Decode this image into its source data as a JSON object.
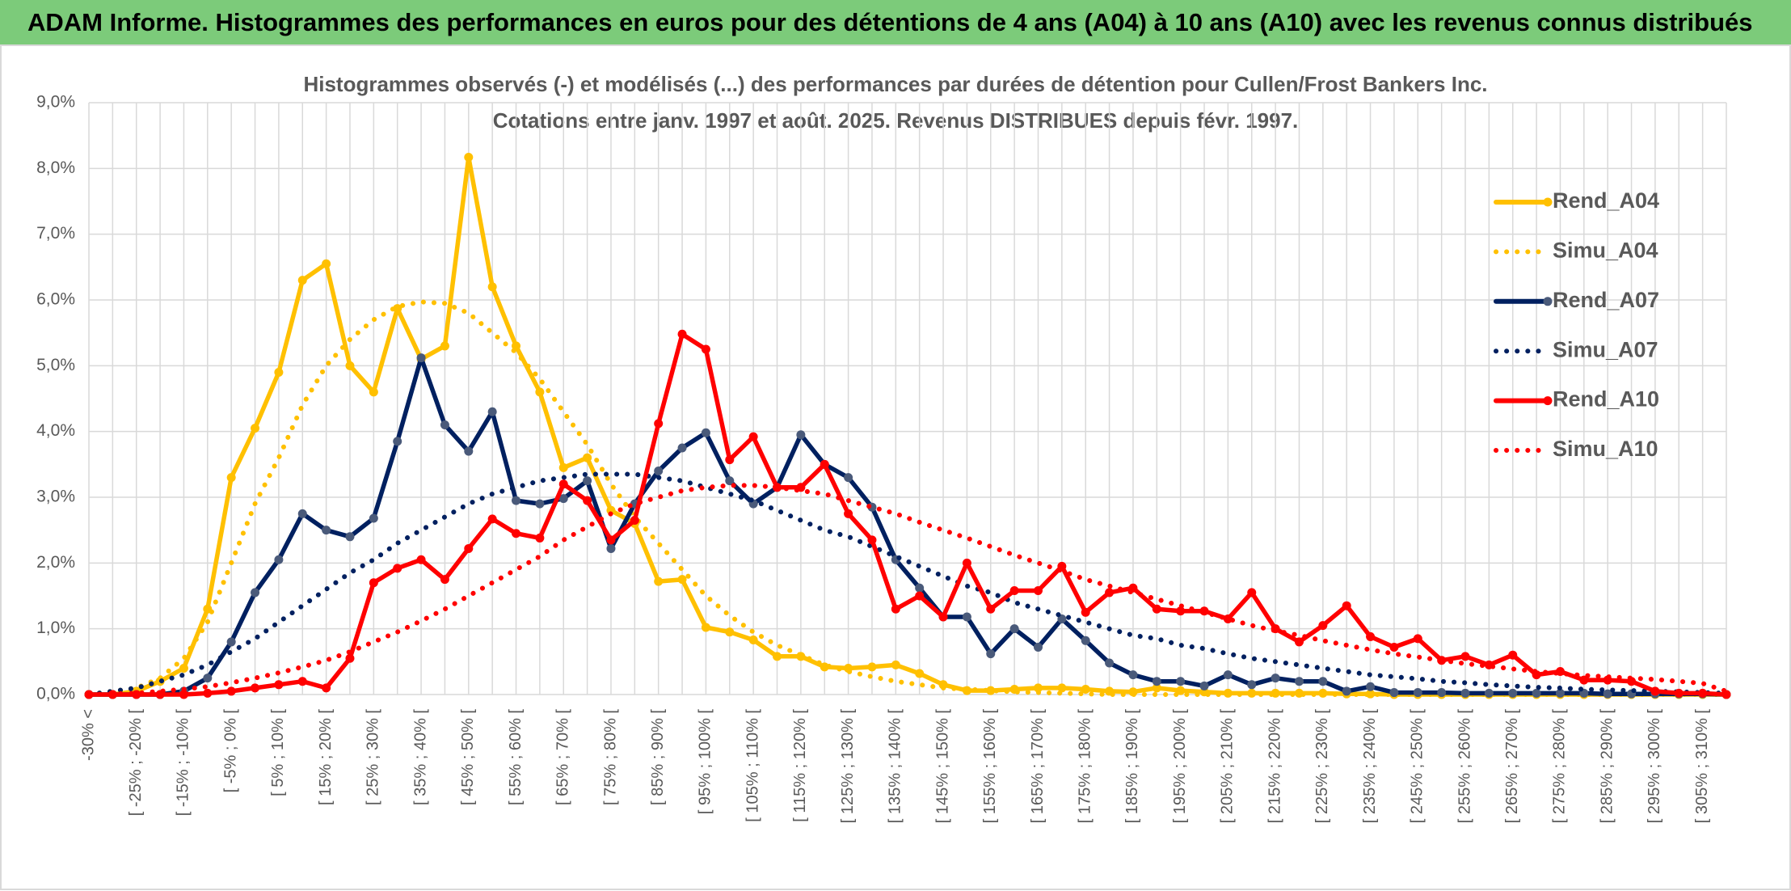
{
  "chart_data": {
    "type": "line",
    "title": "ADAM Informe. Histogrammes des performances en euros pour des détentions de 4 ans (A04) à 10 ans (A10) avec les revenus connus distribués",
    "subtitle": [
      "Histogrammes observés (-) et modélisés (...) des performances par durées de détention pour Cullen/Frost Bankers Inc.",
      "Cotations entre janv. 1997 et août. 2025. Revenus DISTRIBUES depuis févr. 1997."
    ],
    "categories": [
      "-30% <",
      null,
      "[ -25% ; -20% [",
      null,
      "[ -15% ; -10% [",
      null,
      "[ -5% ; 0% [",
      null,
      "[ 5% ; 10% [",
      null,
      "[ 15% ; 20% [",
      null,
      "[ 25% ; 30% [",
      null,
      "[ 35% ; 40% [",
      null,
      "[ 45% ; 50% [",
      null,
      "[ 55% ; 60% [",
      null,
      "[ 65% ; 70% [",
      null,
      "[ 75% ; 80% [",
      null,
      "[ 85% ; 90% [",
      null,
      "[ 95% ; 100% [",
      null,
      "[ 105% ; 110% [",
      null,
      "[ 115% ; 120% [",
      null,
      "[ 125% ; 130% [",
      null,
      "[ 135% ; 140% [",
      null,
      "[ 145% ; 150% [",
      null,
      "[ 155% ; 160% [",
      null,
      "[ 165% ; 170% [",
      null,
      "[ 175% ; 180% [",
      null,
      "[ 185% ; 190% [",
      null,
      "[ 195% ; 200% [",
      null,
      "[ 205% ; 210% [",
      null,
      "[ 215% ; 220% [",
      null,
      "[ 225% ; 230% [",
      null,
      "[ 235% ; 240% [",
      null,
      "[ 245% ; 250% [",
      null,
      "[ 255% ; 260% [",
      null,
      "[ 265% ; 270% [",
      null,
      "[ 275% ; 280% [",
      null,
      "[ 285% ; 290% [",
      null,
      "[ 295% ; 300% [",
      null,
      "[ 305% ; 310% [",
      null
    ],
    "ylim": [
      0,
      9
    ],
    "yticks": [
      {
        "value": 0,
        "label": "0,0%"
      },
      {
        "value": 1,
        "label": "1,0%"
      },
      {
        "value": 2,
        "label": "2,0%"
      },
      {
        "value": 3,
        "label": "3,0%"
      },
      {
        "value": 4,
        "label": "4,0%"
      },
      {
        "value": 5,
        "label": "5,0%"
      },
      {
        "value": 6,
        "label": "6,0%"
      },
      {
        "value": 7,
        "label": "7,0%"
      },
      {
        "value": 8,
        "label": "8,0%"
      },
      {
        "value": 9,
        "label": "9,0%"
      }
    ],
    "grid": true,
    "legend": "right",
    "series": [
      {
        "name": "Rend_A04",
        "color": "#FFC000",
        "style": "solid",
        "values": [
          0,
          0,
          0.05,
          0.2,
          0.4,
          1.3,
          3.3,
          4.05,
          4.9,
          6.3,
          6.55,
          5.0,
          4.6,
          5.87,
          5.1,
          5.3,
          8.17,
          6.2,
          5.3,
          4.6,
          3.45,
          3.6,
          2.8,
          2.6,
          1.72,
          1.75,
          1.02,
          0.95,
          0.83,
          0.58,
          0.58,
          0.42,
          0.4,
          0.42,
          0.45,
          0.32,
          0.15,
          0.06,
          0.06,
          0.08,
          0.1,
          0.1,
          0.08,
          0.05,
          0.04,
          0.1,
          0.06,
          0.04,
          0.02,
          0.02,
          0.02,
          0.02,
          0.02,
          0.01,
          0.01,
          0,
          0,
          0,
          0,
          0,
          0,
          0,
          0,
          0,
          0,
          0,
          0,
          0,
          0,
          0
        ]
      },
      {
        "name": "Simu_A04",
        "color": "#FFC000",
        "style": "dotted",
        "values": [
          0,
          0.05,
          0.1,
          0.25,
          0.55,
          1.1,
          2.0,
          2.9,
          3.6,
          4.4,
          5.0,
          5.4,
          5.7,
          5.9,
          5.97,
          5.95,
          5.8,
          5.5,
          5.2,
          4.8,
          4.3,
          3.8,
          3.2,
          2.7,
          2.3,
          1.9,
          1.5,
          1.2,
          0.95,
          0.75,
          0.6,
          0.45,
          0.35,
          0.27,
          0.2,
          0.15,
          0.1,
          0.08,
          0.06,
          0.04,
          0.03,
          0.02,
          0.01,
          0,
          0,
          0,
          0,
          0,
          0,
          0,
          0,
          0,
          0,
          0,
          0,
          0,
          0,
          0,
          0,
          0,
          0,
          0,
          0,
          0,
          0,
          0,
          0,
          0,
          0,
          0
        ]
      },
      {
        "name": "Rend_A07",
        "color": "#002060",
        "style": "solid",
        "marker": "#4a5a7a",
        "values": [
          0,
          0,
          0,
          0,
          0.05,
          0.25,
          0.8,
          1.55,
          2.05,
          2.75,
          2.5,
          2.4,
          2.68,
          3.85,
          5.12,
          4.1,
          3.7,
          4.3,
          2.95,
          2.9,
          2.98,
          3.25,
          2.22,
          2.9,
          3.4,
          3.75,
          3.98,
          3.25,
          2.9,
          3.15,
          3.95,
          3.5,
          3.3,
          2.85,
          2.05,
          1.62,
          1.18,
          1.18,
          0.62,
          1.0,
          0.72,
          1.15,
          0.82,
          0.48,
          0.3,
          0.2,
          0.2,
          0.13,
          0.3,
          0.15,
          0.25,
          0.2,
          0.2,
          0.05,
          0.12,
          0.03,
          0.03,
          0.03,
          0.02,
          0.02,
          0.02,
          0.02,
          0.02,
          0.02,
          0.01,
          0.01,
          0.01,
          0.01,
          0.01,
          0
        ]
      },
      {
        "name": "Simu_A07",
        "color": "#002060",
        "style": "dotted",
        "values": [
          0,
          0.05,
          0.1,
          0.2,
          0.3,
          0.45,
          0.65,
          0.85,
          1.1,
          1.35,
          1.6,
          1.85,
          2.05,
          2.3,
          2.5,
          2.7,
          2.9,
          3.05,
          3.15,
          3.25,
          3.3,
          3.35,
          3.35,
          3.35,
          3.3,
          3.25,
          3.15,
          3.05,
          2.95,
          2.8,
          2.65,
          2.5,
          2.4,
          2.25,
          2.1,
          1.95,
          1.8,
          1.65,
          1.55,
          1.4,
          1.3,
          1.2,
          1.1,
          1.0,
          0.9,
          0.85,
          0.75,
          0.7,
          0.62,
          0.55,
          0.5,
          0.45,
          0.4,
          0.35,
          0.3,
          0.27,
          0.24,
          0.2,
          0.18,
          0.15,
          0.13,
          0.11,
          0.1,
          0.08,
          0.07,
          0.06,
          0.05,
          0.04,
          0.03,
          0.02
        ]
      },
      {
        "name": "Rend_A10",
        "color": "#FF0000",
        "style": "solid",
        "values": [
          0,
          0,
          0,
          0,
          0,
          0.02,
          0.05,
          0.1,
          0.15,
          0.2,
          0.1,
          0.55,
          1.7,
          1.92,
          2.05,
          1.75,
          2.22,
          2.67,
          2.45,
          2.38,
          3.2,
          2.95,
          2.35,
          2.65,
          4.12,
          5.48,
          5.25,
          3.57,
          3.92,
          3.15,
          3.15,
          3.5,
          2.75,
          2.35,
          1.3,
          1.5,
          1.18,
          2.0,
          1.3,
          1.58,
          1.58,
          1.95,
          1.25,
          1.55,
          1.62,
          1.3,
          1.27,
          1.27,
          1.15,
          1.55,
          1.0,
          0.8,
          1.05,
          1.35,
          0.88,
          0.72,
          0.85,
          0.52,
          0.58,
          0.45,
          0.6,
          0.3,
          0.35,
          0.22,
          0.22,
          0.2,
          0.05,
          0.02,
          0.02,
          0
        ]
      },
      {
        "name": "Simu_A10",
        "color": "#FF0000",
        "style": "dotted",
        "values": [
          0,
          0.01,
          0.02,
          0.05,
          0.08,
          0.12,
          0.18,
          0.25,
          0.33,
          0.42,
          0.52,
          0.65,
          0.8,
          0.95,
          1.12,
          1.3,
          1.5,
          1.7,
          1.9,
          2.1,
          2.35,
          2.55,
          2.75,
          2.9,
          3.0,
          3.1,
          3.15,
          3.18,
          3.18,
          3.15,
          3.1,
          3.05,
          2.95,
          2.85,
          2.75,
          2.62,
          2.5,
          2.38,
          2.25,
          2.12,
          2.0,
          1.88,
          1.75,
          1.65,
          1.55,
          1.45,
          1.35,
          1.25,
          1.15,
          1.05,
          0.97,
          0.9,
          0.82,
          0.75,
          0.68,
          0.62,
          0.57,
          0.52,
          0.47,
          0.43,
          0.39,
          0.35,
          0.32,
          0.29,
          0.27,
          0.25,
          0.23,
          0.2,
          0.17,
          0.05
        ]
      }
    ]
  }
}
